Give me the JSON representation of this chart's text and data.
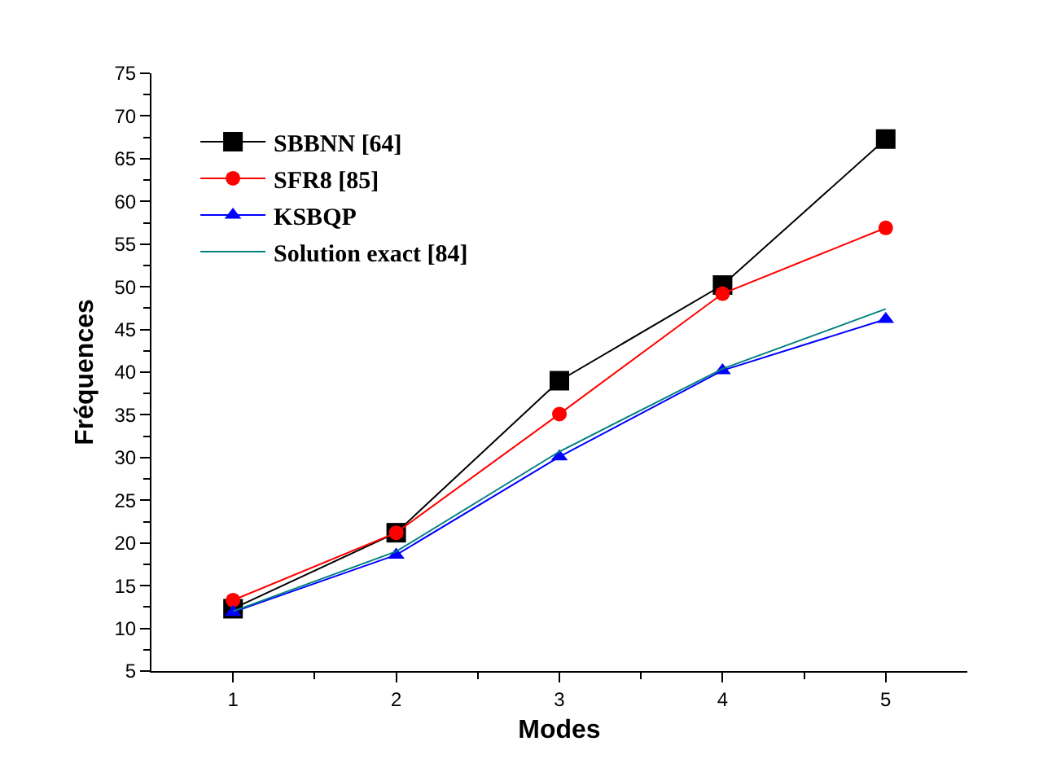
{
  "chart_data": {
    "type": "line",
    "xlabel": "Modes",
    "ylabel": "Fréquences",
    "x": [
      1,
      2,
      3,
      4,
      5
    ],
    "series": [
      {
        "name": "SBBNN [64]",
        "color": "#000000",
        "marker": "square",
        "values": [
          12.3,
          21.2,
          39.0,
          50.2,
          67.3
        ]
      },
      {
        "name": "SFR8 [85]",
        "color": "#ff0000",
        "marker": "circle",
        "values": [
          13.3,
          21.2,
          35.1,
          49.2,
          56.9
        ]
      },
      {
        "name": "KSBQP",
        "color": "#0000ff",
        "marker": "triangle",
        "values": [
          11.9,
          18.6,
          30.1,
          40.2,
          46.2
        ]
      },
      {
        "name": "Solution exact [84]",
        "color": "#008080",
        "marker": "none",
        "values": [
          12.0,
          19.0,
          30.7,
          40.4,
          47.4
        ]
      }
    ],
    "xlim": [
      0.5,
      5.5
    ],
    "xticks": [
      1,
      2,
      3,
      4,
      5
    ],
    "ylim": [
      5,
      75
    ],
    "yticks": [
      5,
      10,
      15,
      20,
      25,
      30,
      35,
      40,
      45,
      50,
      55,
      60,
      65,
      70,
      75
    ],
    "grid": false,
    "legend": "top left"
  }
}
